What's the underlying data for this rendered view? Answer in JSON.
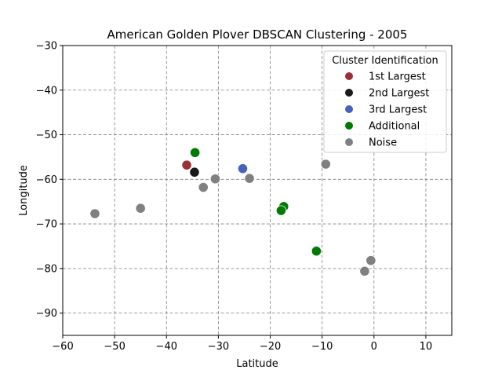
{
  "chart_data": {
    "type": "scatter",
    "title": "American Golden Plover DBSCAN Clustering - 2005",
    "xlabel": "Latitude",
    "ylabel": "Longitude",
    "xlim": [
      -60,
      15
    ],
    "ylim": [
      -95,
      -30
    ],
    "x_ticks": [
      -60,
      -50,
      -40,
      -30,
      -20,
      -10,
      0,
      10
    ],
    "y_ticks": [
      -90,
      -80,
      -70,
      -60,
      -50,
      -40,
      -30
    ],
    "x_tick_labels": [
      "−60",
      "−50",
      "−40",
      "−30",
      "−20",
      "−10",
      "0",
      "10"
    ],
    "y_tick_labels": [
      "−90",
      "−80",
      "−70",
      "−60",
      "−50",
      "−40",
      "−30"
    ],
    "grid": true,
    "legend": {
      "title": "Cluster Identification",
      "placement": "top-right"
    },
    "series": [
      {
        "name": "1st Largest",
        "color": "#9b3039",
        "points": [
          [
            -36.1,
            -56.8
          ]
        ]
      },
      {
        "name": "2nd Largest",
        "color": "#1a1a1a",
        "points": [
          [
            -34.6,
            -58.4
          ]
        ]
      },
      {
        "name": "3rd Largest",
        "color": "#4563be",
        "points": [
          [
            -25.3,
            -57.6
          ]
        ]
      },
      {
        "name": "Additional",
        "color": "#007a00",
        "points": [
          [
            -34.5,
            -54.0
          ],
          [
            -17.4,
            -66.1
          ],
          [
            -17.9,
            -67.0
          ],
          [
            -11.1,
            -76.1
          ]
        ]
      },
      {
        "name": "Noise",
        "color": "#808080",
        "points": [
          [
            -53.8,
            -67.7
          ],
          [
            -45.0,
            -66.5
          ],
          [
            -32.9,
            -61.8
          ],
          [
            -30.6,
            -59.9
          ],
          [
            -24.0,
            -59.8
          ],
          [
            -9.3,
            -56.6
          ],
          [
            -0.6,
            -78.2
          ],
          [
            -1.8,
            -80.6
          ]
        ]
      }
    ]
  }
}
